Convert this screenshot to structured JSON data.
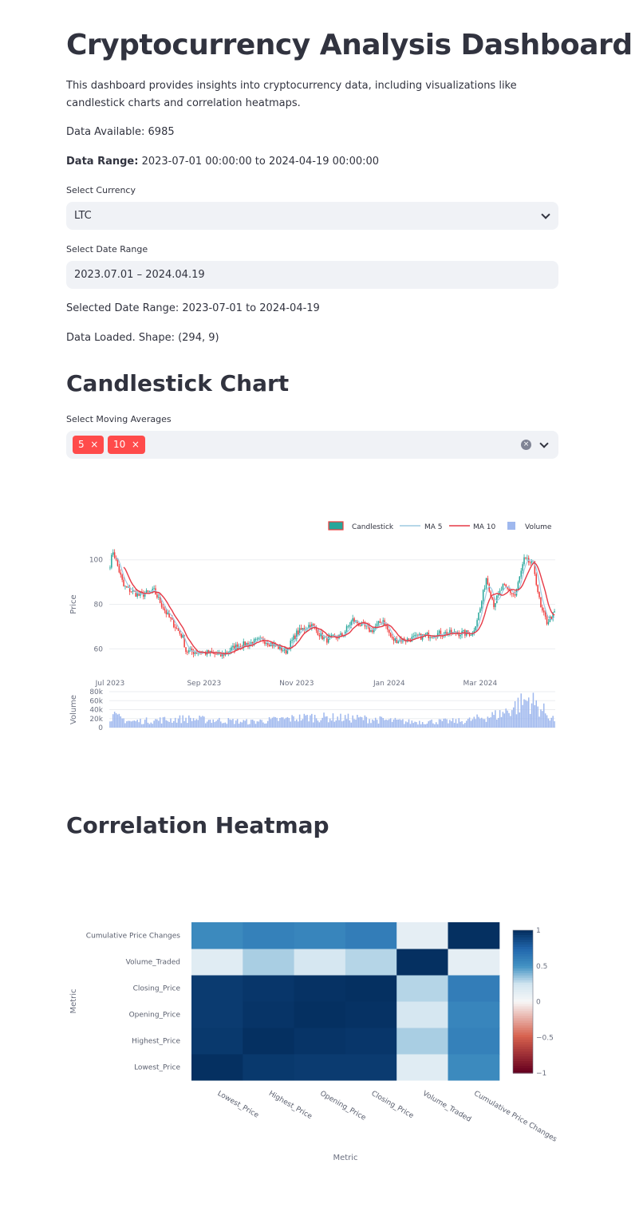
{
  "header": {
    "title": "Cryptocurrency Analysis Dashboard",
    "description": "This dashboard provides insights into cryptocurrency data, including visualizations like candlestick charts and correlation heatmaps.",
    "data_available": "Data Available: 6985",
    "data_range_label": "Data Range:",
    "data_range_value": "2023-07-01 00:00:00 to 2024-04-19 00:00:00"
  },
  "controls": {
    "currency_label": "Select Currency",
    "currency_value": "LTC",
    "date_label": "Select Date Range",
    "date_value": "2023.07.01 – 2024.04.19",
    "selected_range": "Selected Date Range: 2023-07-01 to 2024-04-19",
    "data_loaded": "Data Loaded. Shape: (294, 9)"
  },
  "candlestick_section": {
    "title": "Candlestick Chart",
    "ma_label": "Select Moving Averages",
    "ma_tags": [
      "5",
      "10"
    ],
    "tag_close": "×",
    "clear_icon": "×"
  },
  "heatmap_section": {
    "title": "Correlation Heatmap"
  },
  "colors": {
    "up": "#26a69a",
    "down": "#ef3b3b",
    "ma5": "#9ecae1",
    "ma10": "#e63946",
    "volume": "#9fb8ee",
    "accent": "#ff4b4b"
  },
  "chart_data": [
    {
      "type": "candlestick",
      "x_tick_labels": [
        "Jul 2023",
        "Sep 2023",
        "Nov 2023",
        "Jan 2024",
        "Mar 2024"
      ],
      "ylabel": "Price",
      "y_ticks": [
        60,
        80,
        100
      ],
      "ylim": [
        54,
        106
      ],
      "legend": [
        "Candlestick",
        "MA 5",
        "MA 10",
        "Volume"
      ],
      "legend_position": "top-right",
      "price_anchors": [
        {
          "date": "2023-07-01",
          "close": 98
        },
        {
          "date": "2023-07-03",
          "close": 104
        },
        {
          "date": "2023-07-10",
          "close": 88
        },
        {
          "date": "2023-07-20",
          "close": 84
        },
        {
          "date": "2023-07-30",
          "close": 86
        },
        {
          "date": "2023-08-08",
          "close": 75
        },
        {
          "date": "2023-08-18",
          "close": 65
        },
        {
          "date": "2023-08-20",
          "close": 59
        },
        {
          "date": "2023-09-05",
          "close": 58
        },
        {
          "date": "2023-09-12",
          "close": 57
        },
        {
          "date": "2023-09-22",
          "close": 61
        },
        {
          "date": "2023-10-10",
          "close": 64
        },
        {
          "date": "2023-10-25",
          "close": 59
        },
        {
          "date": "2023-11-01",
          "close": 67
        },
        {
          "date": "2023-11-10",
          "close": 71
        },
        {
          "date": "2023-11-20",
          "close": 64
        },
        {
          "date": "2023-12-01",
          "close": 66
        },
        {
          "date": "2023-12-08",
          "close": 73
        },
        {
          "date": "2023-12-20",
          "close": 68
        },
        {
          "date": "2023-12-28",
          "close": 73
        },
        {
          "date": "2024-01-03",
          "close": 64
        },
        {
          "date": "2024-01-12",
          "close": 64
        },
        {
          "date": "2024-01-25",
          "close": 66
        },
        {
          "date": "2024-02-05",
          "close": 67
        },
        {
          "date": "2024-02-15",
          "close": 67
        },
        {
          "date": "2024-02-25",
          "close": 67
        },
        {
          "date": "2024-03-01",
          "close": 78
        },
        {
          "date": "2024-03-05",
          "close": 92
        },
        {
          "date": "2024-03-10",
          "close": 80
        },
        {
          "date": "2024-03-16",
          "close": 88
        },
        {
          "date": "2024-03-24",
          "close": 84
        },
        {
          "date": "2024-03-30",
          "close": 100
        },
        {
          "date": "2024-04-05",
          "close": 98
        },
        {
          "date": "2024-04-10",
          "close": 78
        },
        {
          "date": "2024-04-14",
          "close": 72
        },
        {
          "date": "2024-04-19",
          "close": 76
        }
      ],
      "volume": {
        "ylabel": "Volume",
        "y_ticks": [
          "0",
          "20k",
          "40k",
          "60k",
          "80k"
        ],
        "ylim": [
          0,
          80000
        ],
        "anchors": [
          {
            "date": "2023-07-01",
            "value": 30000
          },
          {
            "date": "2023-07-15",
            "value": 15000
          },
          {
            "date": "2023-08-20",
            "value": 22000
          },
          {
            "date": "2023-10-01",
            "value": 14000
          },
          {
            "date": "2023-11-10",
            "value": 26000
          },
          {
            "date": "2023-12-15",
            "value": 22000
          },
          {
            "date": "2024-01-15",
            "value": 14000
          },
          {
            "date": "2024-02-20",
            "value": 16000
          },
          {
            "date": "2024-03-15",
            "value": 34000
          },
          {
            "date": "2024-04-02",
            "value": 70000
          },
          {
            "date": "2024-04-19",
            "value": 20000
          }
        ]
      }
    },
    {
      "type": "heatmap",
      "xlabel": "Metric",
      "ylabel": "Metric",
      "x_labels": [
        "Lowest_Price",
        "Highest_Price",
        "Opening_Price",
        "Closing_Price",
        "Volume_Traded",
        "Cumulative Price Changes"
      ],
      "y_labels": [
        "Lowest_Price",
        "Highest_Price",
        "Opening_Price",
        "Closing_Price",
        "Volume_Traded",
        "Cumulative Price Changes"
      ],
      "z": [
        [
          1.0,
          0.96,
          0.95,
          0.95,
          0.15,
          0.55
        ],
        [
          0.96,
          1.0,
          0.98,
          0.97,
          0.32,
          0.6
        ],
        [
          0.95,
          0.98,
          1.0,
          0.99,
          0.22,
          0.58
        ],
        [
          0.95,
          0.97,
          0.99,
          1.0,
          0.3,
          0.62
        ],
        [
          0.15,
          0.32,
          0.22,
          0.3,
          1.0,
          0.12
        ],
        [
          0.55,
          0.6,
          0.58,
          0.62,
          0.12,
          1.0
        ]
      ],
      "zlim": [
        -1,
        1
      ],
      "colorbar_ticks": [
        "1",
        "0.5",
        "0",
        "−0.5",
        "−1"
      ],
      "colorscale": "RdBu"
    }
  ]
}
